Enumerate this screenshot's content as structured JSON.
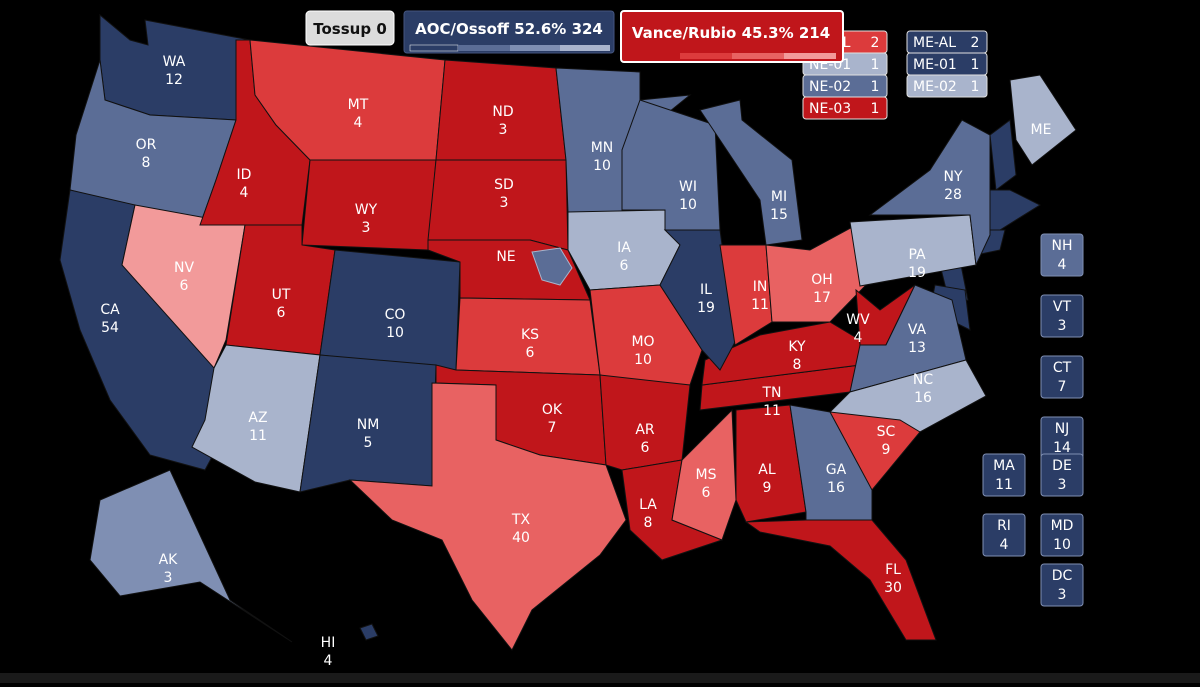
{
  "header": {
    "tossup": {
      "name": "Tossup",
      "ev": 0
    },
    "dem": {
      "name": "AOC/Ossoff",
      "pct": "52.6%",
      "ev": 324
    },
    "rep": {
      "name": "Vance/Rubio",
      "pct": "45.3%",
      "ev": 214
    }
  },
  "states": [
    {
      "abbr": "WA",
      "ev": 12,
      "color": "#2b3d66"
    },
    {
      "abbr": "OR",
      "ev": 8,
      "color": "#5b6d96"
    },
    {
      "abbr": "CA",
      "ev": 54,
      "color": "#2b3d66"
    },
    {
      "abbr": "NV",
      "ev": 6,
      "color": "#f29a9a"
    },
    {
      "abbr": "ID",
      "ev": 4,
      "color": "#c0161b"
    },
    {
      "abbr": "MT",
      "ev": 4,
      "color": "#dc3b3c"
    },
    {
      "abbr": "WY",
      "ev": 3,
      "color": "#c0161b"
    },
    {
      "abbr": "UT",
      "ev": 6,
      "color": "#c0161b"
    },
    {
      "abbr": "CO",
      "ev": 10,
      "color": "#2b3d66"
    },
    {
      "abbr": "AZ",
      "ev": 11,
      "color": "#a9b4cc"
    },
    {
      "abbr": "NM",
      "ev": 5,
      "color": "#2b3d66"
    },
    {
      "abbr": "ND",
      "ev": 3,
      "color": "#c0161b"
    },
    {
      "abbr": "SD",
      "ev": 3,
      "color": "#c0161b"
    },
    {
      "abbr": "NE",
      "color": "#c0161b"
    },
    {
      "abbr": "KS",
      "ev": 6,
      "color": "#dc3b3c"
    },
    {
      "abbr": "OK",
      "ev": 7,
      "color": "#c0161b"
    },
    {
      "abbr": "TX",
      "ev": 40,
      "color": "#e86262"
    },
    {
      "abbr": "MN",
      "ev": 10,
      "color": "#5b6d96"
    },
    {
      "abbr": "IA",
      "ev": 6,
      "color": "#a9b4cc"
    },
    {
      "abbr": "MO",
      "ev": 10,
      "color": "#dc3b3c"
    },
    {
      "abbr": "AR",
      "ev": 6,
      "color": "#c0161b"
    },
    {
      "abbr": "LA",
      "ev": 8,
      "color": "#c0161b"
    },
    {
      "abbr": "MS",
      "ev": 6,
      "color": "#e86262"
    },
    {
      "abbr": "AL",
      "ev": 9,
      "color": "#c0161b"
    },
    {
      "abbr": "TN",
      "ev": 11,
      "color": "#c0161b"
    },
    {
      "abbr": "KY",
      "ev": 8,
      "color": "#c0161b"
    },
    {
      "abbr": "WI",
      "ev": 10,
      "color": "#5b6d96"
    },
    {
      "abbr": "IL",
      "ev": 19,
      "color": "#2b3d66"
    },
    {
      "abbr": "IN",
      "ev": 11,
      "color": "#dc3b3c"
    },
    {
      "abbr": "OH",
      "ev": 17,
      "color": "#e86262"
    },
    {
      "abbr": "MI",
      "ev": 15,
      "color": "#5b6d96"
    },
    {
      "abbr": "WV",
      "ev": 4,
      "color": "#c0161b"
    },
    {
      "abbr": "VA",
      "ev": 13,
      "color": "#5b6d96"
    },
    {
      "abbr": "NC",
      "ev": 16,
      "color": "#a9b4cc"
    },
    {
      "abbr": "SC",
      "ev": 9,
      "color": "#dc3b3c"
    },
    {
      "abbr": "GA",
      "ev": 16,
      "color": "#5b6d96"
    },
    {
      "abbr": "FL",
      "ev": 30,
      "color": "#c0161b"
    },
    {
      "abbr": "PA",
      "ev": 19,
      "color": "#a9b4cc"
    },
    {
      "abbr": "NY",
      "ev": 28,
      "color": "#5b6d96"
    },
    {
      "abbr": "ME",
      "color": "#a9b4cc"
    },
    {
      "abbr": "AK",
      "ev": 3,
      "color": "#7f8fb3"
    },
    {
      "abbr": "HI",
      "ev": 4,
      "color": "#2b3d66"
    }
  ],
  "boxes": [
    {
      "abbr": "NH",
      "ev": 4,
      "color": "#5b6d96"
    },
    {
      "abbr": "VT",
      "ev": 3,
      "color": "#2b3d66"
    },
    {
      "abbr": "CT",
      "ev": 7,
      "color": "#2b3d66"
    },
    {
      "abbr": "NJ",
      "ev": 14,
      "color": "#2b3d66"
    },
    {
      "abbr": "MA",
      "ev": 11,
      "color": "#2b3d66"
    },
    {
      "abbr": "DE",
      "ev": 3,
      "color": "#2b3d66"
    },
    {
      "abbr": "RI",
      "ev": 4,
      "color": "#2b3d66"
    },
    {
      "abbr": "MD",
      "ev": 10,
      "color": "#2b3d66"
    },
    {
      "abbr": "DC",
      "ev": 3,
      "color": "#2b3d66"
    }
  ],
  "districts": {
    "ne": [
      {
        "name": "NE-AL",
        "ev": 2,
        "color": "#dc3b3c"
      },
      {
        "name": "NE-01",
        "ev": 1,
        "color": "#a9b4cc"
      },
      {
        "name": "NE-02",
        "ev": 1,
        "color": "#5b6d96"
      },
      {
        "name": "NE-03",
        "ev": 1,
        "color": "#c0161b"
      }
    ],
    "me": [
      {
        "name": "ME-AL",
        "ev": 2,
        "color": "#2b3d66"
      },
      {
        "name": "ME-01",
        "ev": 1,
        "color": "#2b3d66"
      },
      {
        "name": "ME-02",
        "ev": 1,
        "color": "#a9b4cc"
      }
    ]
  }
}
